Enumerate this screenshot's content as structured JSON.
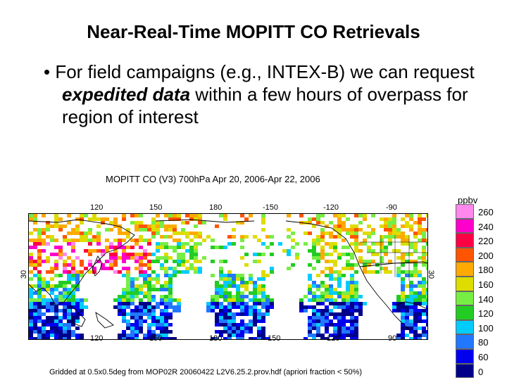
{
  "slide": {
    "title": "Near-Real-Time MOPITT CO Retrievals",
    "bullet_pre": "For field campaigns (e.g., INTEX-B) we can request ",
    "bullet_emph": "expedited data",
    "bullet_post": " within a few hours of overpass for region of interest"
  },
  "map": {
    "title": "MOPITT CO (V3) 700hPa Apr 20, 2006-Apr 22, 2006",
    "lon_top": [
      "120",
      "150",
      "180",
      "-150",
      "-120",
      "-90"
    ],
    "lon_bottom": [
      "120",
      "150",
      "180",
      "150",
      "120",
      "90"
    ],
    "lat_left": "30",
    "lat_right": "30",
    "footnote": "Gridded at 0.5x0.5deg from MOP02R 20060422 L2V6.25.2.prov.hdf (apriori fraction < 50%)"
  },
  "legend": {
    "unit": "ppbv",
    "levels": [
      {
        "label": "260",
        "color": "#ff88ee"
      },
      {
        "label": "240",
        "color": "#ff00cc"
      },
      {
        "label": "220",
        "color": "#ff0044"
      },
      {
        "label": "200",
        "color": "#ff5500"
      },
      {
        "label": "180",
        "color": "#ffaa00"
      },
      {
        "label": "160",
        "color": "#dddd00"
      },
      {
        "label": "140",
        "color": "#77ee44"
      },
      {
        "label": "120",
        "color": "#22cc22"
      },
      {
        "label": "100",
        "color": "#00ccff"
      },
      {
        "label": "80",
        "color": "#2277ff"
      },
      {
        "label": "60",
        "color": "#0000ee"
      },
      {
        "label": "0",
        "color": "#000088"
      }
    ]
  }
}
